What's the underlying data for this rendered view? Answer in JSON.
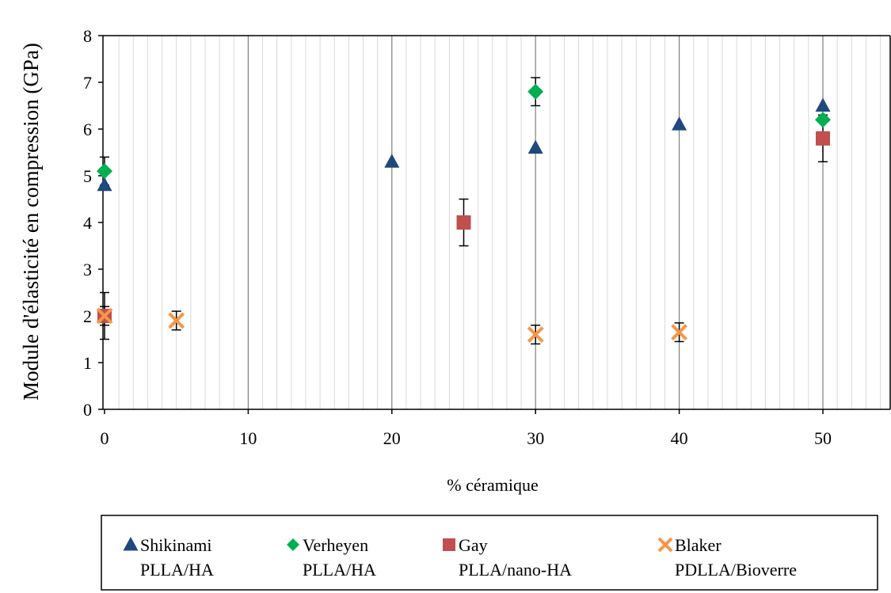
{
  "chart_data": {
    "type": "scatter",
    "title": "",
    "xlabel": "% céramique",
    "ylabel": "Module d'élasticité en compression (GPa)",
    "xlim": [
      0,
      55
    ],
    "ylim": [
      0,
      8
    ],
    "x_ticks": [
      0,
      10,
      20,
      30,
      40,
      50
    ],
    "y_ticks": [
      0,
      1,
      2,
      3,
      4,
      5,
      6,
      7,
      8
    ],
    "grid": "vertical major and minor gridlines",
    "legend_position": "bottom",
    "series": [
      {
        "name": "Shikinami PLLA/HA",
        "legend_line1": "Shikinami",
        "legend_line2": "PLLA/HA",
        "marker": "triangle",
        "color": "#1f497d",
        "points": [
          {
            "x": 0,
            "y": 4.8
          },
          {
            "x": 20,
            "y": 5.3
          },
          {
            "x": 30,
            "y": 5.6
          },
          {
            "x": 40,
            "y": 6.1
          },
          {
            "x": 50,
            "y": 6.5
          }
        ]
      },
      {
        "name": "Verheyen PLLA/HA",
        "legend_line1": "Verheyen",
        "legend_line2": "PLLA/HA",
        "marker": "diamond",
        "color": "#00b050",
        "points": [
          {
            "x": 0,
            "y": 5.1,
            "err": 0.3
          },
          {
            "x": 30,
            "y": 6.8,
            "err": 0.3
          },
          {
            "x": 50,
            "y": 6.2
          }
        ]
      },
      {
        "name": "Gay PLLA/nano-HA",
        "legend_line1": "Gay",
        "legend_line2": "PLLA/nano-HA",
        "marker": "square",
        "color": "#c0504d",
        "points": [
          {
            "x": 0,
            "y": 2.0,
            "err": 0.5
          },
          {
            "x": 25,
            "y": 4.0,
            "err": 0.5
          },
          {
            "x": 50,
            "y": 5.8,
            "err": 0.5
          }
        ]
      },
      {
        "name": "Blaker PDLLA/Bioverre",
        "legend_line1": "Blaker",
        "legend_line2": "PDLLA/Bioverre",
        "marker": "x",
        "color": "#f79646",
        "points": [
          {
            "x": 0,
            "y": 2.0,
            "err": 0.2
          },
          {
            "x": 5,
            "y": 1.9,
            "err": 0.2
          },
          {
            "x": 30,
            "y": 1.6,
            "err": 0.2
          },
          {
            "x": 40,
            "y": 1.65,
            "err": 0.2
          }
        ]
      }
    ]
  }
}
